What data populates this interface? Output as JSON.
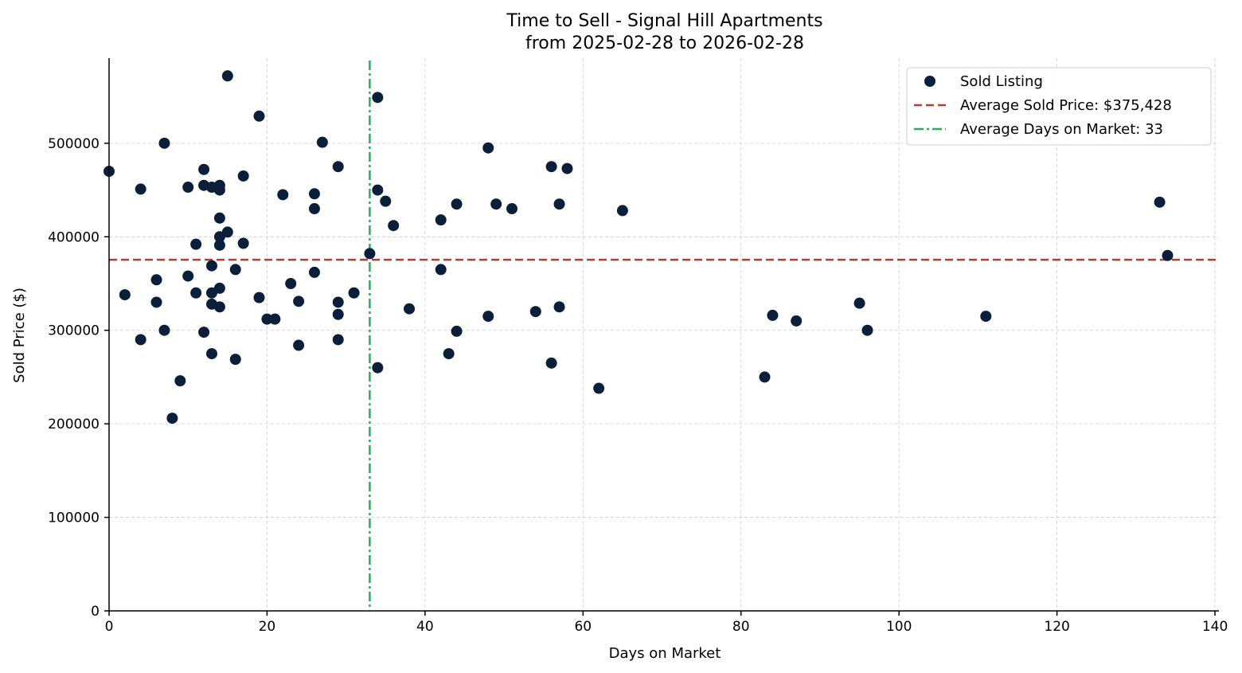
{
  "chart_data": {
    "type": "scatter",
    "title": "Time to Sell - Signal Hill Apartments",
    "subtitle": "from 2025-02-28 to 2026-02-28",
    "xlabel": "Days on Market",
    "ylabel": "Sold Price ($)",
    "xlim": [
      0,
      140.5
    ],
    "ylim": [
      0,
      591000
    ],
    "xticks": [
      0,
      20,
      40,
      60,
      80,
      100,
      120,
      140
    ],
    "xtick_labels": [
      "0",
      "20",
      "40",
      "60",
      "80",
      "100",
      "120",
      "140"
    ],
    "yticks": [
      0,
      100000,
      200000,
      300000,
      400000,
      500000
    ],
    "ytick_labels": [
      "0",
      "100000",
      "200000",
      "300000",
      "400000",
      "500000"
    ],
    "grid": true,
    "legend_position": "top-right",
    "colors": {
      "points": "#0b1f3a",
      "avg_price": "#c0392b",
      "avg_days": "#27ae60",
      "grid": "#cccccc"
    },
    "series": [
      {
        "name": "Sold Listing",
        "points": [
          [
            0,
            470000
          ],
          [
            2,
            338000
          ],
          [
            4,
            451000
          ],
          [
            4,
            290000
          ],
          [
            6,
            354000
          ],
          [
            6,
            330000
          ],
          [
            7,
            500000
          ],
          [
            7,
            300000
          ],
          [
            8,
            206000
          ],
          [
            9,
            246000
          ],
          [
            10,
            453000
          ],
          [
            10,
            358000
          ],
          [
            11,
            392000
          ],
          [
            11,
            340000
          ],
          [
            12,
            472000
          ],
          [
            12,
            455000
          ],
          [
            12,
            298000
          ],
          [
            13,
            453000
          ],
          [
            13,
            369000
          ],
          [
            13,
            340000
          ],
          [
            13,
            328000
          ],
          [
            13,
            275000
          ],
          [
            14,
            455000
          ],
          [
            14,
            450000
          ],
          [
            14,
            420000
          ],
          [
            14,
            400000
          ],
          [
            14,
            391000
          ],
          [
            14,
            345000
          ],
          [
            14,
            325000
          ],
          [
            15,
            572000
          ],
          [
            15,
            405000
          ],
          [
            16,
            365000
          ],
          [
            16,
            269000
          ],
          [
            17,
            465000
          ],
          [
            17,
            393000
          ],
          [
            19,
            529000
          ],
          [
            19,
            335000
          ],
          [
            20,
            312000
          ],
          [
            21,
            312000
          ],
          [
            22,
            445000
          ],
          [
            23,
            350000
          ],
          [
            24,
            331000
          ],
          [
            24,
            284000
          ],
          [
            26,
            446000
          ],
          [
            26,
            430000
          ],
          [
            26,
            362000
          ],
          [
            27,
            501000
          ],
          [
            29,
            475000
          ],
          [
            29,
            330000
          ],
          [
            29,
            317000
          ],
          [
            29,
            290000
          ],
          [
            31,
            340000
          ],
          [
            33,
            382000
          ],
          [
            34,
            549000
          ],
          [
            34,
            450000
          ],
          [
            34,
            260000
          ],
          [
            35,
            438000
          ],
          [
            36,
            412000
          ],
          [
            38,
            323000
          ],
          [
            42,
            418000
          ],
          [
            42,
            365000
          ],
          [
            43,
            275000
          ],
          [
            44,
            435000
          ],
          [
            44,
            299000
          ],
          [
            48,
            495000
          ],
          [
            48,
            315000
          ],
          [
            49,
            435000
          ],
          [
            51,
            430000
          ],
          [
            54,
            320000
          ],
          [
            56,
            475000
          ],
          [
            56,
            265000
          ],
          [
            57,
            435000
          ],
          [
            57,
            325000
          ],
          [
            58,
            473000
          ],
          [
            62,
            238000
          ],
          [
            65,
            428000
          ],
          [
            83,
            250000
          ],
          [
            84,
            316000
          ],
          [
            87,
            310000
          ],
          [
            95,
            329000
          ],
          [
            96,
            300000
          ],
          [
            111,
            315000
          ],
          [
            133,
            437000
          ],
          [
            134,
            380000
          ]
        ]
      }
    ],
    "reference_lines": [
      {
        "name": "Average Sold Price: $375,428",
        "orientation": "horizontal",
        "value": 375428,
        "style": "dashed"
      },
      {
        "name": "Average Days on Market: 33",
        "orientation": "vertical",
        "value": 33,
        "style": "dashdot"
      }
    ],
    "legend": [
      {
        "label": "Sold Listing",
        "marker": "dot"
      },
      {
        "label": "Average Sold Price: $375,428",
        "marker": "dashed"
      },
      {
        "label": "Average Days on Market: 33",
        "marker": "dashdot"
      }
    ]
  }
}
